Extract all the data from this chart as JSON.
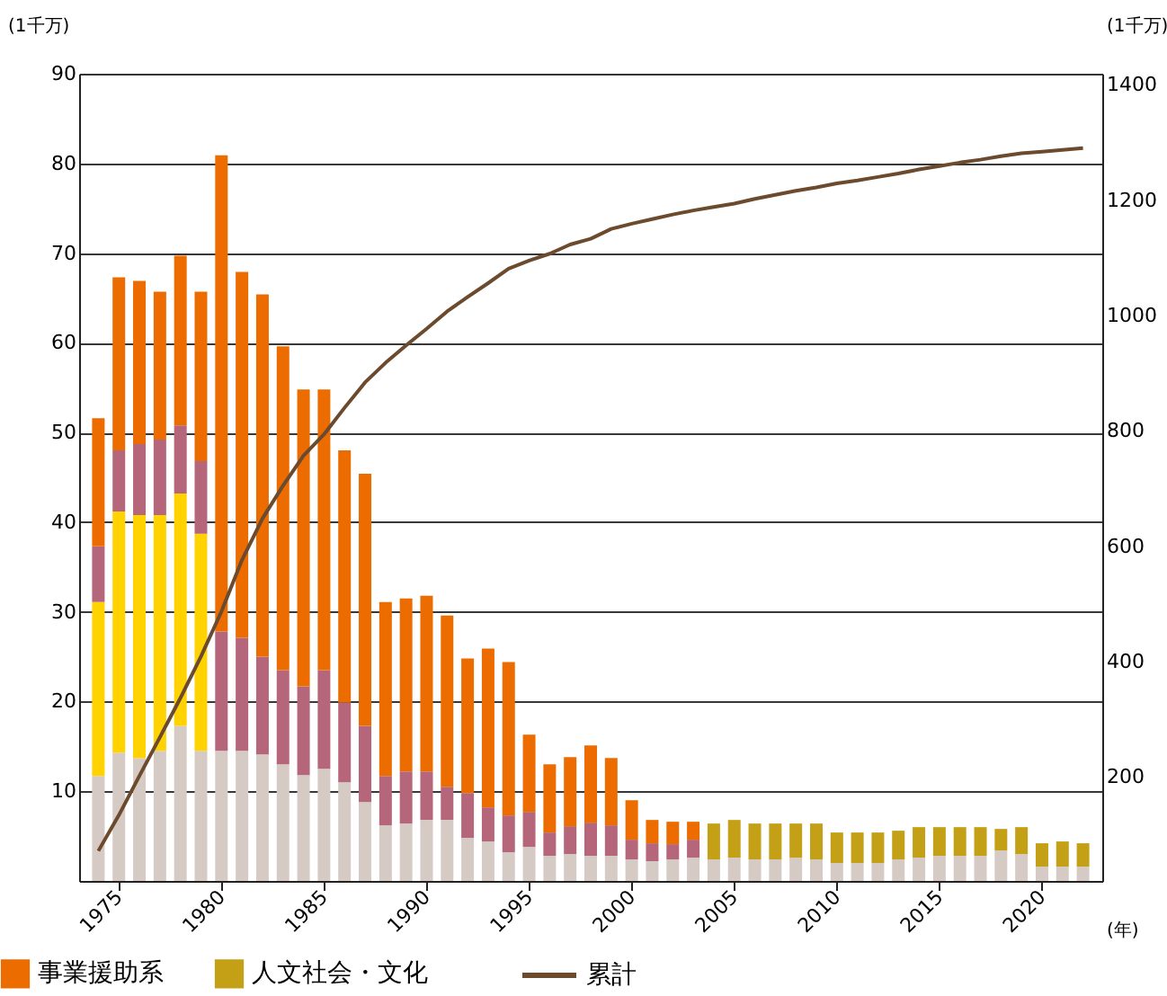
{
  "chart_data": {
    "type": "bar",
    "stacked": true,
    "xlabel": "(年)",
    "ylabel": "(1千万)",
    "y2label": "(1千万)",
    "x": [
      1974,
      1975,
      1976,
      1977,
      1978,
      1979,
      1980,
      1981,
      1982,
      1983,
      1984,
      1985,
      1986,
      1987,
      1988,
      1989,
      1990,
      1991,
      1992,
      1993,
      1994,
      1995,
      1996,
      1997,
      1998,
      1999,
      2000,
      2001,
      2002,
      2003,
      2004,
      2005,
      2006,
      2007,
      2008,
      2009,
      2010,
      2011,
      2012,
      2013,
      2014,
      2015,
      2016,
      2017,
      2018,
      2019,
      2020,
      2021,
      2022
    ],
    "xlim": [
      1973.5,
      2022.5
    ],
    "xticks": [
      1975,
      1980,
      1985,
      1990,
      1995,
      2000,
      2005,
      2010,
      2015,
      2020
    ],
    "ylim": [
      0,
      90
    ],
    "yticks": [
      10,
      20,
      30,
      40,
      50,
      60,
      70,
      80,
      90
    ],
    "y2lim": [
      20,
      1419
    ],
    "y2ticks": [
      200,
      400,
      600,
      800,
      1000,
      1200,
      1400
    ],
    "grid": "y",
    "legend": "bottom",
    "series": [
      {
        "color": "#d6cbc4",
        "values": [
          11.7,
          14.3,
          13.7,
          14.5,
          17.3,
          14.5,
          14.5,
          14.5,
          14.1,
          13.0,
          11.8,
          12.5,
          11.0,
          8.8,
          6.2,
          6.4,
          6.8,
          6.8,
          4.8,
          4.4,
          3.2,
          3.8,
          2.8,
          3.0,
          2.8,
          2.8,
          2.4,
          2.2,
          2.4,
          2.6,
          2.4,
          2.6,
          2.4,
          2.4,
          2.6,
          2.4,
          2.0,
          2.0,
          2.0,
          2.4,
          2.6,
          2.8,
          2.8,
          2.8,
          3.4,
          3.0,
          1.6,
          1.6,
          1.6
        ]
      },
      {
        "color": "#ffd200",
        "values": [
          19.4,
          26.9,
          27.1,
          26.3,
          25.9,
          24.2,
          null,
          null,
          null,
          null,
          null,
          null,
          null,
          null,
          null,
          null,
          null,
          null,
          null,
          null,
          null,
          null,
          null,
          null,
          null,
          null,
          null,
          null,
          null,
          null,
          null,
          null,
          null,
          null,
          null,
          null,
          null,
          null,
          null,
          null,
          null,
          null,
          null,
          null,
          null,
          null,
          null,
          null,
          null
        ]
      },
      {
        "color": "#b5667a",
        "values": [
          6.2,
          6.8,
          7.9,
          8.4,
          7.6,
          8.1,
          13.3,
          12.6,
          10.9,
          10.5,
          9.9,
          11.0,
          8.9,
          8.5,
          5.5,
          5.8,
          5.4,
          3.7,
          5.0,
          3.8,
          4.1,
          3.9,
          2.6,
          3.1,
          3.7,
          3.4,
          2.2,
          2.0,
          1.7,
          2.0,
          null,
          null,
          null,
          null,
          null,
          null,
          null,
          null,
          null,
          null,
          null,
          null,
          null,
          null,
          null,
          null,
          null,
          null,
          null
        ]
      },
      {
        "name": "事業援助系",
        "color": "#ec6c00",
        "values": [
          14.3,
          19.3,
          18.2,
          16.5,
          18.9,
          18.9,
          53.1,
          40.8,
          40.4,
          36.1,
          33.1,
          31.3,
          28.1,
          28.1,
          19.4,
          19.3,
          19.6,
          19.1,
          15.0,
          17.7,
          17.1,
          8.6,
          7.6,
          7.7,
          8.6,
          7.5,
          4.4,
          2.6,
          2.5,
          2.0,
          null,
          null,
          null,
          null,
          null,
          null,
          null,
          null,
          null,
          null,
          null,
          null,
          null,
          null,
          null,
          null,
          null,
          null,
          null
        ]
      },
      {
        "name": "人文社会・文化",
        "color": "#c4a016",
        "values": [
          null,
          null,
          null,
          null,
          null,
          null,
          null,
          null,
          null,
          null,
          null,
          null,
          null,
          null,
          null,
          null,
          null,
          null,
          null,
          null,
          null,
          null,
          null,
          null,
          null,
          null,
          null,
          null,
          null,
          null,
          4.0,
          4.2,
          4.0,
          4.0,
          3.8,
          4.0,
          3.4,
          3.4,
          3.4,
          3.2,
          3.4,
          3.2,
          3.2,
          3.2,
          2.4,
          3.0,
          2.6,
          2.8,
          2.6
        ]
      },
      {
        "name": "累計",
        "type": "line",
        "axis": "y2",
        "color": "#6b4a2e",
        "values": [
          72,
          134,
          202,
          269,
          337,
          409,
          487,
          576,
          648,
          705,
          757,
          794,
          840,
          884,
          918,
          948,
          977,
          1007,
          1032,
          1056,
          1081,
          1095,
          1107,
          1123,
          1133,
          1150,
          1159,
          1167,
          1175,
          1182,
          1188,
          1194,
          1202,
          1209,
          1216,
          1222,
          1229,
          1234,
          1240,
          1246,
          1253,
          1259,
          1265,
          1270,
          1276,
          1281,
          1284,
          1287,
          1290
        ]
      }
    ]
  }
}
